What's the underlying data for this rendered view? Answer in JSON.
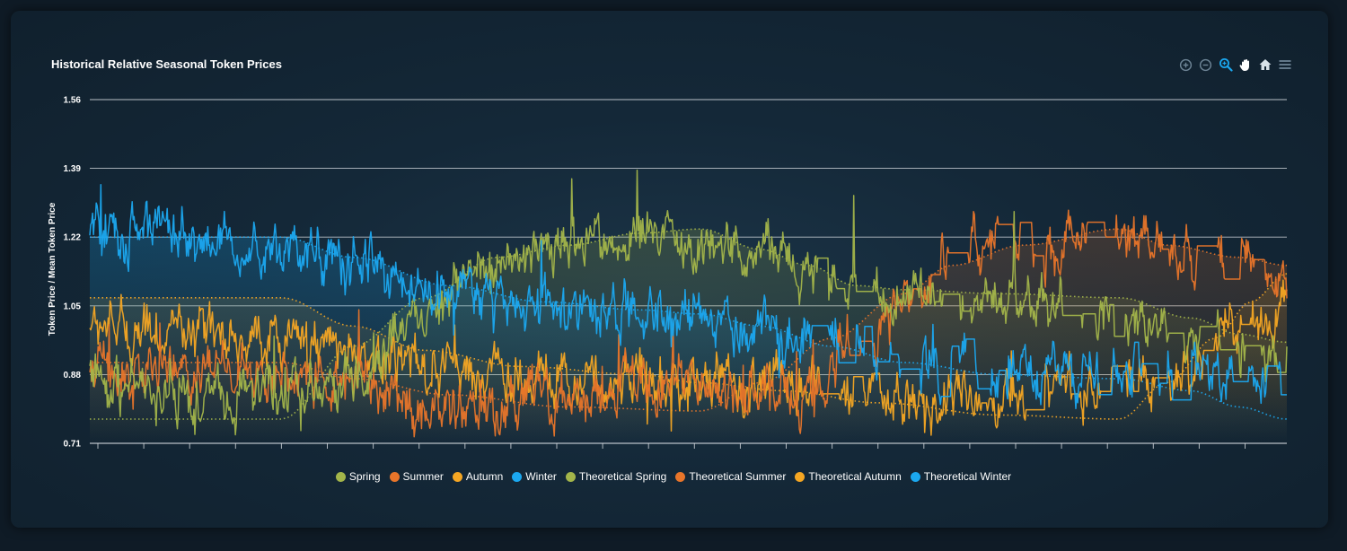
{
  "title": "Historical Relative Seasonal Token Prices",
  "toolbar": {
    "icons": [
      "zoom-in-icon",
      "zoom-out-icon",
      "selection-zoom-icon",
      "pan-icon",
      "reset-zoom-icon",
      "menu-icon"
    ]
  },
  "colors": {
    "spring": "#a3b54a",
    "summer": "#e8752a",
    "autumn": "#f5a623",
    "winter": "#1ba8f0",
    "grid": "#d8dde2",
    "toolbar_icon": "#6e8596",
    "toolbar_active": "#1ba8f0"
  },
  "chart_data": {
    "type": "line",
    "title": "Historical Relative Seasonal Token Prices",
    "xlabel": "",
    "ylabel": "Token Price / Mean Token Price",
    "ylim": [
      0.71,
      1.56
    ],
    "yticks": [
      "1.56",
      "1.39",
      "1.22",
      "1.05",
      "0.88",
      "0.71"
    ],
    "x_points": 1300,
    "grid": true,
    "legend_position": "bottom",
    "series": [
      {
        "name": "Spring",
        "key": "spring",
        "style": "solid",
        "anchors": [
          [
            0,
            0.9
          ],
          [
            0.04,
            0.83
          ],
          [
            0.1,
            0.82
          ],
          [
            0.16,
            0.84
          ],
          [
            0.22,
            0.88
          ],
          [
            0.28,
            1.05
          ],
          [
            0.33,
            1.15
          ],
          [
            0.38,
            1.19
          ],
          [
            0.43,
            1.2
          ],
          [
            0.48,
            1.21
          ],
          [
            0.52,
            1.2
          ],
          [
            0.56,
            1.17
          ],
          [
            0.6,
            1.14
          ],
          [
            0.64,
            1.1
          ],
          [
            0.68,
            1.07
          ],
          [
            0.72,
            1.05
          ],
          [
            0.76,
            1.06
          ],
          [
            0.8,
            1.05
          ],
          [
            0.84,
            1.03
          ],
          [
            0.88,
            1.0
          ],
          [
            0.92,
            0.98
          ],
          [
            0.96,
            0.96
          ],
          [
            1.0,
            0.95
          ]
        ]
      },
      {
        "name": "Summer",
        "key": "summer",
        "style": "solid",
        "anchors": [
          [
            0,
            0.9
          ],
          [
            0.04,
            0.89
          ],
          [
            0.1,
            0.89
          ],
          [
            0.16,
            0.88
          ],
          [
            0.22,
            0.86
          ],
          [
            0.28,
            0.8
          ],
          [
            0.33,
            0.79
          ],
          [
            0.38,
            0.82
          ],
          [
            0.43,
            0.84
          ],
          [
            0.48,
            0.85
          ],
          [
            0.52,
            0.84
          ],
          [
            0.56,
            0.84
          ],
          [
            0.6,
            0.85
          ],
          [
            0.64,
            0.95
          ],
          [
            0.68,
            1.05
          ],
          [
            0.72,
            1.18
          ],
          [
            0.76,
            1.21
          ],
          [
            0.8,
            1.2
          ],
          [
            0.84,
            1.21
          ],
          [
            0.88,
            1.21
          ],
          [
            0.92,
            1.18
          ],
          [
            0.96,
            1.15
          ],
          [
            1.0,
            1.1
          ]
        ]
      },
      {
        "name": "Autumn",
        "key": "autumn",
        "style": "solid",
        "anchors": [
          [
            0,
            1.0
          ],
          [
            0.04,
            0.99
          ],
          [
            0.1,
            0.98
          ],
          [
            0.16,
            0.96
          ],
          [
            0.22,
            0.93
          ],
          [
            0.28,
            0.91
          ],
          [
            0.33,
            0.89
          ],
          [
            0.38,
            0.87
          ],
          [
            0.43,
            0.87
          ],
          [
            0.48,
            0.86
          ],
          [
            0.52,
            0.86
          ],
          [
            0.56,
            0.85
          ],
          [
            0.6,
            0.86
          ],
          [
            0.64,
            0.84
          ],
          [
            0.68,
            0.82
          ],
          [
            0.72,
            0.82
          ],
          [
            0.76,
            0.83
          ],
          [
            0.8,
            0.84
          ],
          [
            0.84,
            0.84
          ],
          [
            0.88,
            0.86
          ],
          [
            0.92,
            0.88
          ],
          [
            0.96,
            0.98
          ],
          [
            1.0,
            1.05
          ]
        ]
      },
      {
        "name": "Winter",
        "key": "winter",
        "style": "solid",
        "anchors": [
          [
            0,
            1.22
          ],
          [
            0.04,
            1.24
          ],
          [
            0.1,
            1.21
          ],
          [
            0.16,
            1.19
          ],
          [
            0.22,
            1.16
          ],
          [
            0.28,
            1.1
          ],
          [
            0.33,
            1.07
          ],
          [
            0.38,
            1.04
          ],
          [
            0.43,
            1.02
          ],
          [
            0.48,
            1.03
          ],
          [
            0.52,
            1.02
          ],
          [
            0.56,
            1.01
          ],
          [
            0.6,
            0.98
          ],
          [
            0.64,
            0.94
          ],
          [
            0.68,
            0.91
          ],
          [
            0.72,
            0.89
          ],
          [
            0.76,
            0.88
          ],
          [
            0.8,
            0.9
          ],
          [
            0.84,
            0.89
          ],
          [
            0.88,
            0.88
          ],
          [
            0.92,
            0.88
          ],
          [
            0.96,
            0.87
          ],
          [
            1.0,
            0.86
          ]
        ]
      },
      {
        "name": "Theoretical Spring",
        "key": "spring",
        "style": "dotted",
        "anchors": [
          [
            0,
            0.77
          ],
          [
            0.16,
            0.77
          ],
          [
            0.22,
            0.95
          ],
          [
            0.28,
            1.07
          ],
          [
            0.34,
            1.17
          ],
          [
            0.4,
            1.2
          ],
          [
            0.46,
            1.23
          ],
          [
            0.51,
            1.24
          ],
          [
            0.56,
            1.19
          ],
          [
            0.6,
            1.15
          ],
          [
            0.64,
            1.1
          ],
          [
            0.68,
            1.09
          ],
          [
            0.76,
            1.08
          ],
          [
            0.86,
            1.07
          ],
          [
            0.92,
            1.02
          ],
          [
            0.96,
            0.98
          ],
          [
            1.0,
            0.96
          ]
        ]
      },
      {
        "name": "Theoretical Summer",
        "key": "summer",
        "style": "dotted",
        "anchors": [
          [
            0,
            0.91
          ],
          [
            0.16,
            0.91
          ],
          [
            0.22,
            0.87
          ],
          [
            0.3,
            0.83
          ],
          [
            0.4,
            0.8
          ],
          [
            0.51,
            0.79
          ],
          [
            0.56,
            0.86
          ],
          [
            0.62,
            0.97
          ],
          [
            0.68,
            1.08
          ],
          [
            0.72,
            1.15
          ],
          [
            0.78,
            1.2
          ],
          [
            0.86,
            1.24
          ],
          [
            0.9,
            1.2
          ],
          [
            0.96,
            1.17
          ],
          [
            1.0,
            1.15
          ]
        ]
      },
      {
        "name": "Theoretical Autumn",
        "key": "autumn",
        "style": "dotted",
        "anchors": [
          [
            0,
            1.07
          ],
          [
            0.16,
            1.07
          ],
          [
            0.22,
            1.0
          ],
          [
            0.28,
            0.94
          ],
          [
            0.36,
            0.9
          ],
          [
            0.46,
            0.88
          ],
          [
            0.51,
            0.86
          ],
          [
            0.58,
            0.84
          ],
          [
            0.66,
            0.81
          ],
          [
            0.76,
            0.78
          ],
          [
            0.86,
            0.77
          ],
          [
            0.9,
            0.86
          ],
          [
            0.94,
            0.97
          ],
          [
            0.97,
            1.06
          ],
          [
            1.0,
            1.13
          ]
        ]
      },
      {
        "name": "Theoretical Winter",
        "key": "winter",
        "style": "dotted",
        "anchors": [
          [
            0,
            1.22
          ],
          [
            0.16,
            1.22
          ],
          [
            0.22,
            1.17
          ],
          [
            0.3,
            1.1
          ],
          [
            0.38,
            1.06
          ],
          [
            0.46,
            1.04
          ],
          [
            0.51,
            1.03
          ],
          [
            0.56,
            1.0
          ],
          [
            0.62,
            0.95
          ],
          [
            0.68,
            0.91
          ],
          [
            0.76,
            0.88
          ],
          [
            0.86,
            0.87
          ],
          [
            0.92,
            0.84
          ],
          [
            0.96,
            0.8
          ],
          [
            1.0,
            0.77
          ]
        ]
      }
    ]
  }
}
